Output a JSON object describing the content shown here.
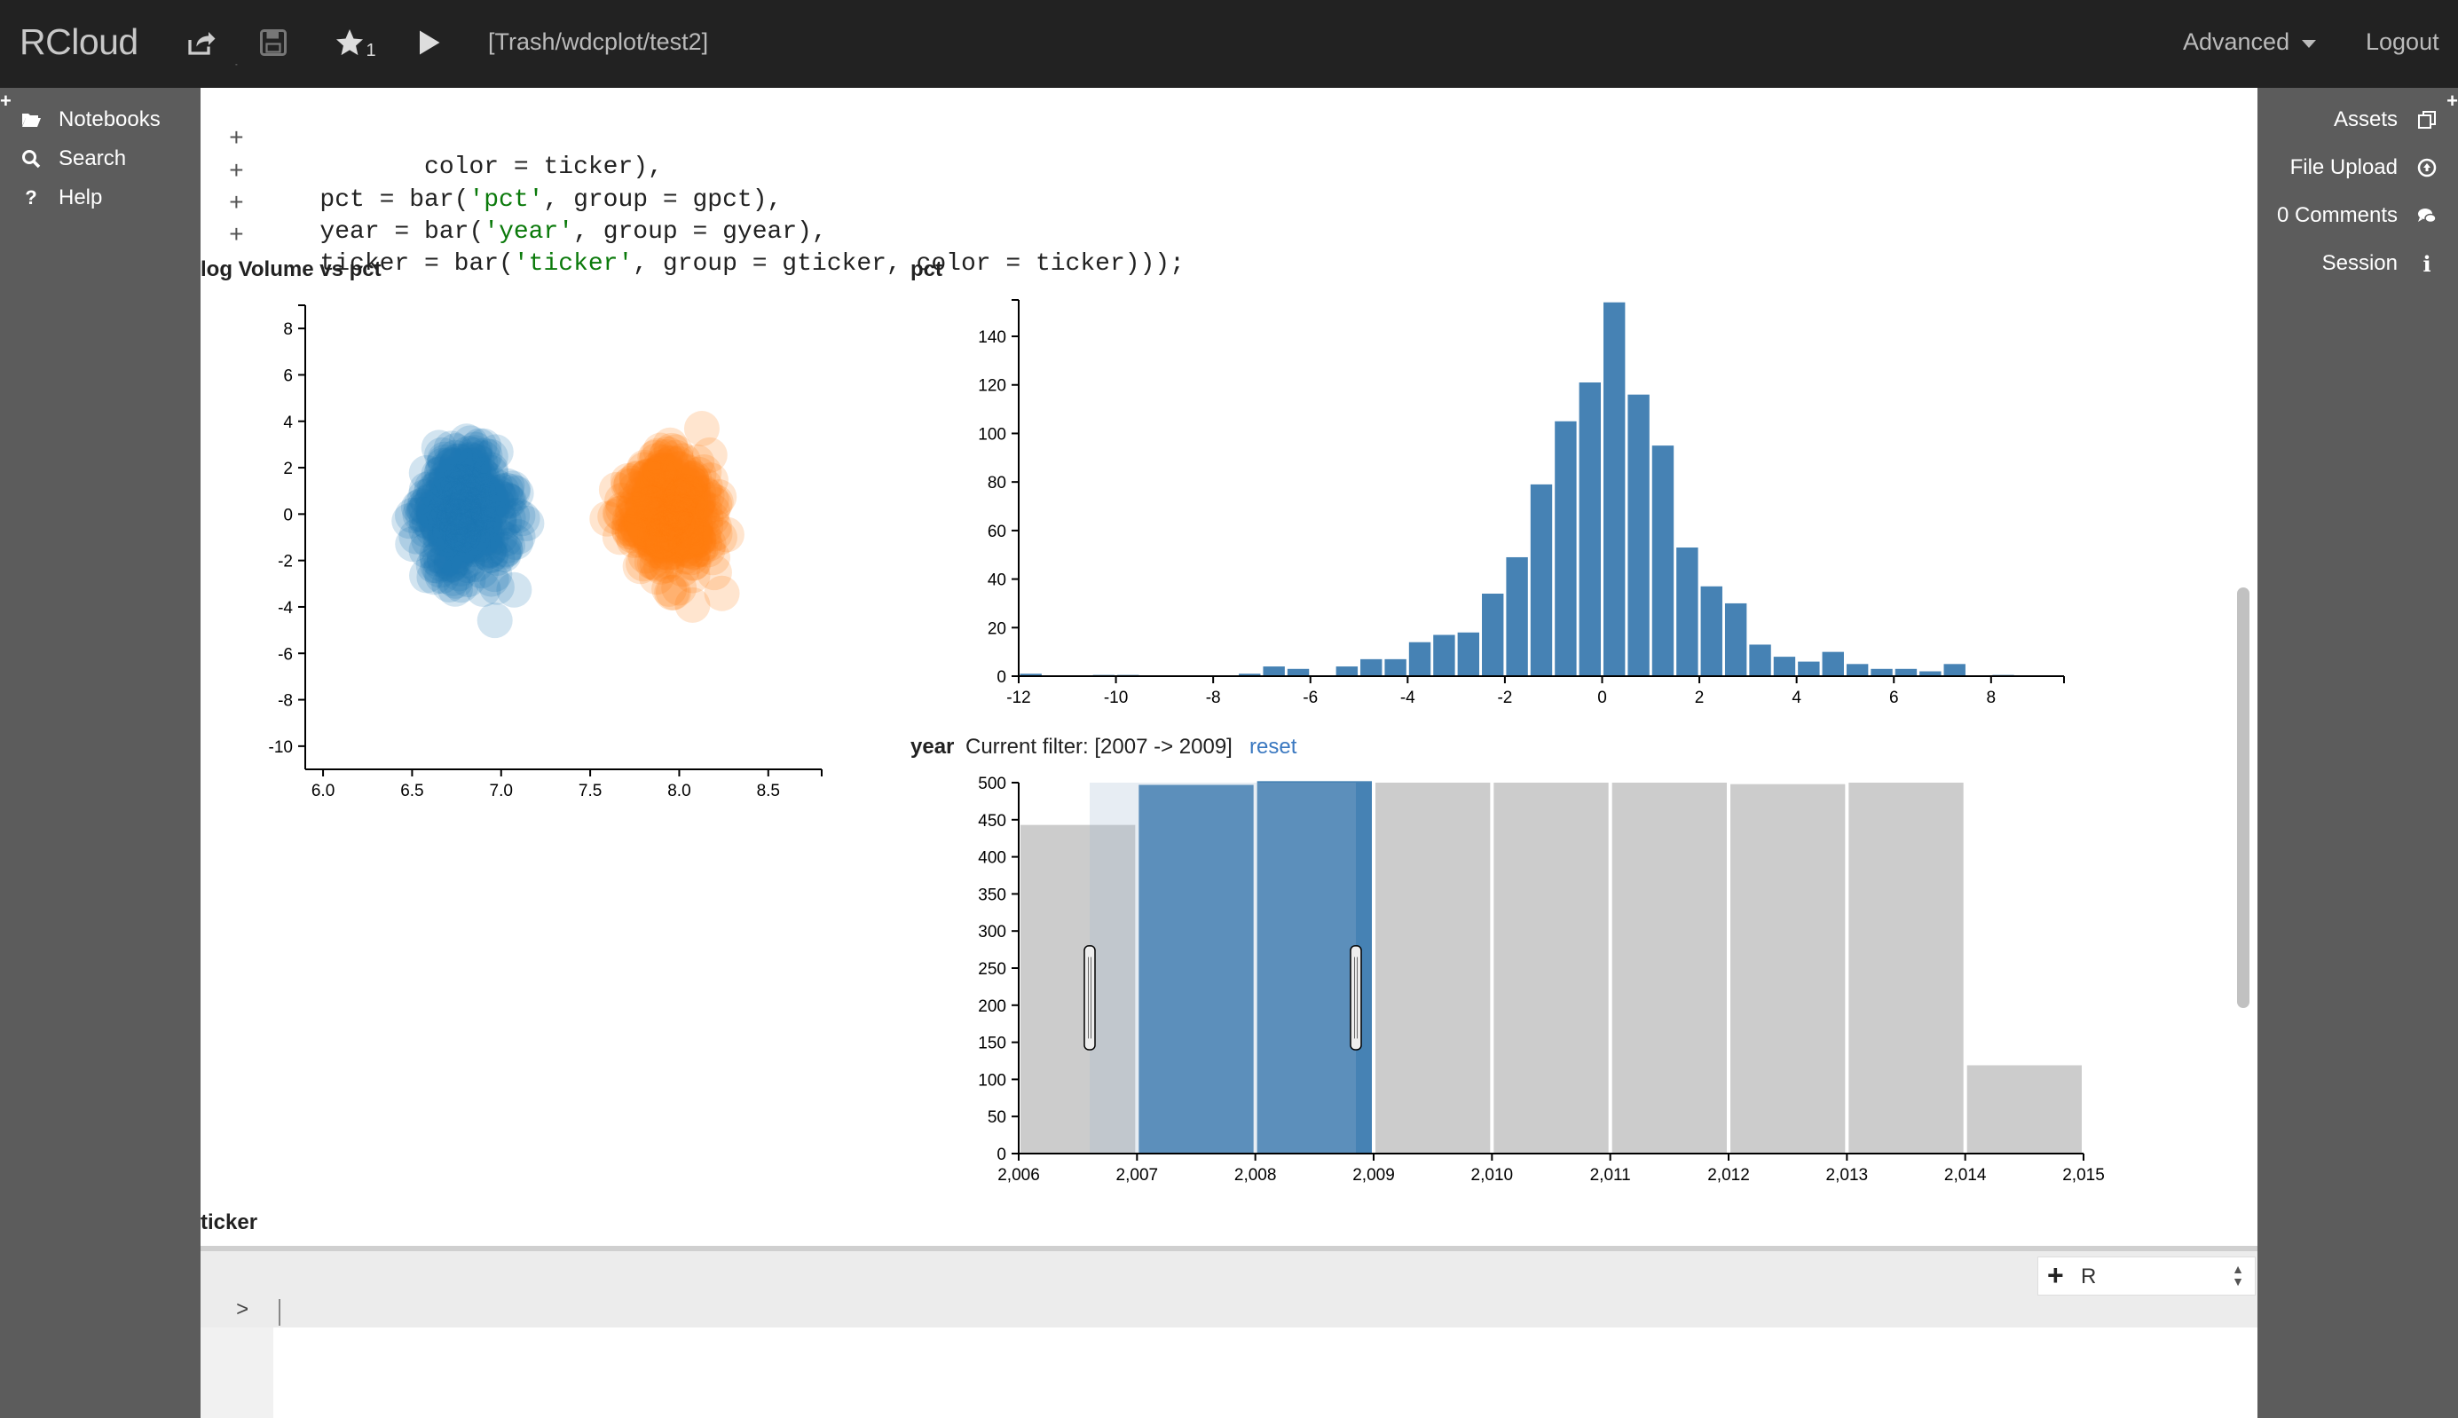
{
  "navbar": {
    "brand": "RCloud",
    "notebook_path": "[Trash/wdcplot/test2]",
    "star_count": "1",
    "advanced_label": "Advanced",
    "logout_label": "Logout"
  },
  "left_sidebar": {
    "items": [
      {
        "label": "Notebooks",
        "icon": "folder-open-icon"
      },
      {
        "label": "Search",
        "icon": "search-icon"
      },
      {
        "label": "Help",
        "icon": "question-icon"
      }
    ]
  },
  "right_sidebar": {
    "items": [
      {
        "label": "Assets",
        "icon": "copy-icon"
      },
      {
        "label": "File Upload",
        "icon": "upload-circle-icon"
      },
      {
        "label": "0 Comments",
        "icon": "comments-icon"
      },
      {
        "label": "Session",
        "icon": "info-icon"
      }
    ]
  },
  "code": {
    "line1": "               color = ticker),",
    "line2_pre": "        pct = bar(",
    "line2_str": "'pct'",
    "line2_post": ", group = gpct),",
    "line3_pre": "        year = bar(",
    "line3_str": "'year'",
    "line3_post": ", group = gyear),",
    "line4_pre": "        ticker = bar(",
    "line4_str": "'ticker'",
    "line4_post": ", group = gticker, color = ticker)));",
    "plus": "+"
  },
  "charts": {
    "scatter_title": "log Volume vs pct",
    "pct_title": "pct",
    "year_title": "year",
    "year_filter": "Current filter: [2007 -> 2009]",
    "reset_label": "reset",
    "ticker_title": "ticker"
  },
  "chart_data": [
    {
      "type": "scatter",
      "title": "log Volume vs pct",
      "xlim": [
        5.9,
        8.8
      ],
      "ylim": [
        -11,
        9
      ],
      "xticks": [
        "6.0",
        "6.5",
        "7.0",
        "7.5",
        "8.0",
        "8.5"
      ],
      "yticks": [
        "8",
        "6",
        "4",
        "2",
        "0",
        "-2",
        "-4",
        "-6",
        "-8",
        "-10"
      ],
      "series_colors": [
        "#1f77b4",
        "#ff7f0e"
      ],
      "clusters": [
        {
          "center_x": 6.8,
          "center_y": 0.0,
          "color": "#1f77b4"
        },
        {
          "center_x": 7.95,
          "center_y": 0.0,
          "color": "#ff7f0e"
        }
      ]
    },
    {
      "type": "bar",
      "title": "pct",
      "xlim": [
        -12,
        9.5
      ],
      "ylim": [
        0,
        155
      ],
      "xticks": [
        "-12",
        "-10",
        "-8",
        "-6",
        "-4",
        "-2",
        "0",
        "2",
        "4",
        "6",
        "8"
      ],
      "yticks": [
        "0",
        "20",
        "40",
        "60",
        "80",
        "100",
        "120",
        "140"
      ],
      "bin_width": 0.5,
      "bins": [
        {
          "x": -11.5,
          "v": 1
        },
        {
          "x": -10,
          "v": 0.5
        },
        {
          "x": -9.5,
          "v": 0.5
        },
        {
          "x": -7,
          "v": 1
        },
        {
          "x": -6.5,
          "v": 4
        },
        {
          "x": -6,
          "v": 3
        },
        {
          "x": -5,
          "v": 4
        },
        {
          "x": -4.5,
          "v": 7
        },
        {
          "x": -4,
          "v": 7
        },
        {
          "x": -3.5,
          "v": 14
        },
        {
          "x": -3,
          "v": 17
        },
        {
          "x": -2.5,
          "v": 18
        },
        {
          "x": -2,
          "v": 34
        },
        {
          "x": -1.5,
          "v": 49
        },
        {
          "x": -1,
          "v": 79
        },
        {
          "x": -0.5,
          "v": 105
        },
        {
          "x": 0,
          "v": 121
        },
        {
          "x": 0.5,
          "v": 154
        },
        {
          "x": 1,
          "v": 116
        },
        {
          "x": 1.5,
          "v": 95
        },
        {
          "x": 2,
          "v": 53
        },
        {
          "x": 2.5,
          "v": 37
        },
        {
          "x": 3,
          "v": 30
        },
        {
          "x": 3.5,
          "v": 13
        },
        {
          "x": 4,
          "v": 8
        },
        {
          "x": 4.5,
          "v": 6
        },
        {
          "x": 5,
          "v": 10
        },
        {
          "x": 5.5,
          "v": 5
        },
        {
          "x": 6,
          "v": 3
        },
        {
          "x": 6.5,
          "v": 3
        },
        {
          "x": 7,
          "v": 2
        },
        {
          "x": 7.5,
          "v": 5
        },
        {
          "x": 8.5,
          "v": 0.5
        }
      ],
      "color": "#4682b4"
    },
    {
      "type": "bar",
      "title": "year",
      "xlim": [
        2006,
        2015
      ],
      "ylim": [
        0,
        500
      ],
      "xticks": [
        "2,006",
        "2,007",
        "2,008",
        "2,009",
        "2,010",
        "2,011",
        "2,012",
        "2,013",
        "2,014",
        "2,015"
      ],
      "yticks": [
        "0",
        "50",
        "100",
        "150",
        "200",
        "250",
        "300",
        "350",
        "400",
        "450",
        "500"
      ],
      "bars": [
        {
          "year": 2006,
          "v": 443
        },
        {
          "year": 2007,
          "v": 497
        },
        {
          "year": 2008,
          "v": 502
        },
        {
          "year": 2009,
          "v": 500
        },
        {
          "year": 2010,
          "v": 500
        },
        {
          "year": 2011,
          "v": 500
        },
        {
          "year": 2012,
          "v": 498
        },
        {
          "year": 2013,
          "v": 500
        },
        {
          "year": 2014,
          "v": 119
        }
      ],
      "filter": [
        2007,
        2009
      ],
      "brush": [
        2006.6,
        2008.85
      ],
      "selected_color": "#4682b4",
      "unselected_color": "#cccccc"
    }
  ],
  "console": {
    "language": "R",
    "prompt": ">",
    "add_symbol": "+"
  }
}
